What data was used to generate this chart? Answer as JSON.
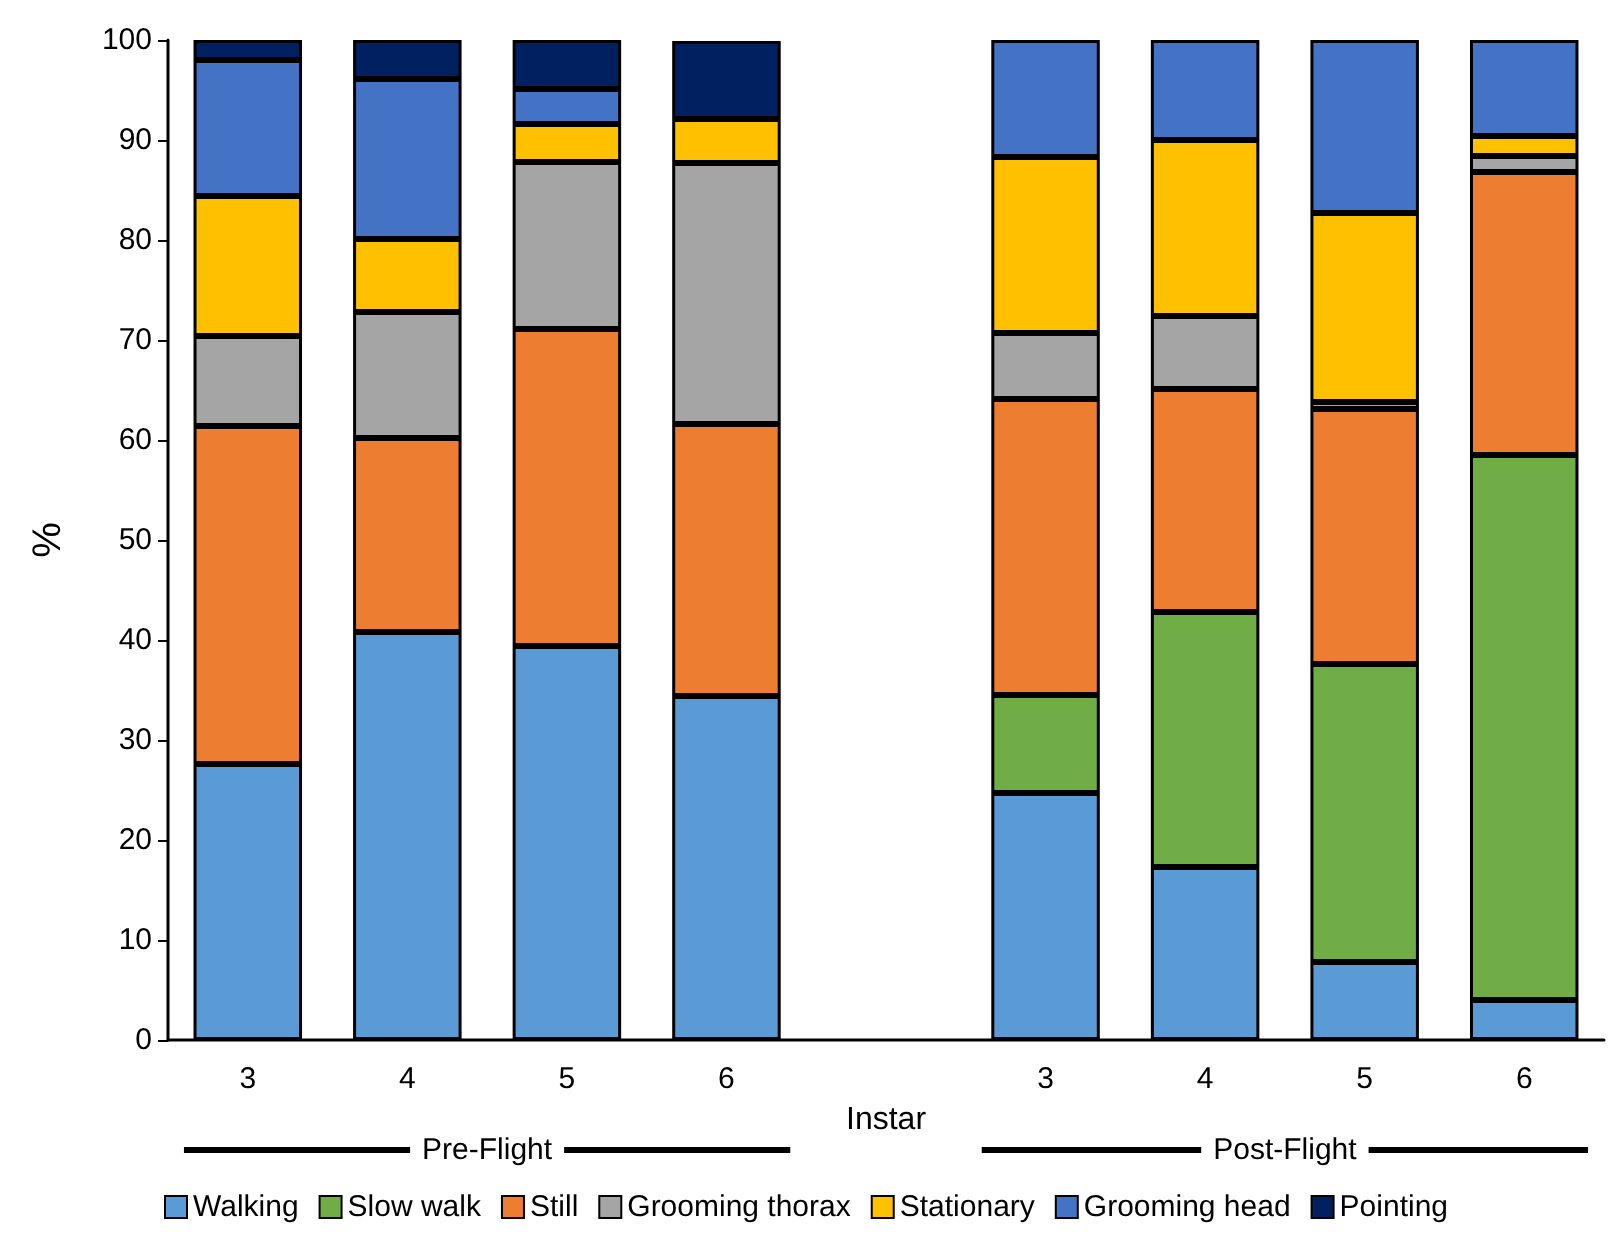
{
  "chart_data": {
    "type": "bar",
    "stacked": true,
    "xlabel": "Instar",
    "ylabel": "%",
    "categories": [
      "3",
      "4",
      "5",
      "6",
      null,
      "3",
      "4",
      "5",
      "6"
    ],
    "series": [
      {
        "name": "Walking",
        "color": "#5b9bd5",
        "values": [
          27.6,
          40.8,
          39.4,
          34.4,
          null,
          24.7,
          17.3,
          7.8,
          4.0
        ]
      },
      {
        "name": "Slow walk",
        "color": "#70ad47",
        "values": [
          null,
          null,
          null,
          null,
          null,
          9.8,
          25.5,
          29.8,
          54.5
        ]
      },
      {
        "name": "Still",
        "color": "#ed7d31",
        "values": [
          33.8,
          19.4,
          31.7,
          27.2,
          null,
          29.6,
          22.3,
          25.5,
          28.3
        ]
      },
      {
        "name": "Grooming thorax",
        "color": "#a5a5a5",
        "values": [
          9.0,
          12.6,
          16.7,
          26.1,
          null,
          6.6,
          7.3,
          0.7,
          1.6
        ]
      },
      {
        "name": "Stationary",
        "color": "#ffc000",
        "values": [
          14.0,
          7.3,
          3.8,
          4.4,
          null,
          17.6,
          17.6,
          18.9,
          2.0
        ]
      },
      {
        "name": "Grooming head",
        "color": "#4472c4",
        "values": [
          13.6,
          16.0,
          3.5,
          null,
          null,
          11.7,
          10.0,
          17.3,
          9.6
        ]
      },
      {
        "name": "Pointing",
        "color": "#002060",
        "values": [
          2.0,
          3.9,
          4.9,
          7.8,
          null,
          null,
          null,
          null,
          null
        ]
      }
    ],
    "ylim": [
      0,
      100
    ],
    "yticks": [
      0,
      10,
      20,
      30,
      40,
      50,
      60,
      70,
      80,
      90,
      100
    ],
    "annotations": [
      "Pre-Flight",
      "Post-Flight"
    ],
    "grid": false,
    "legend": "bottom"
  }
}
